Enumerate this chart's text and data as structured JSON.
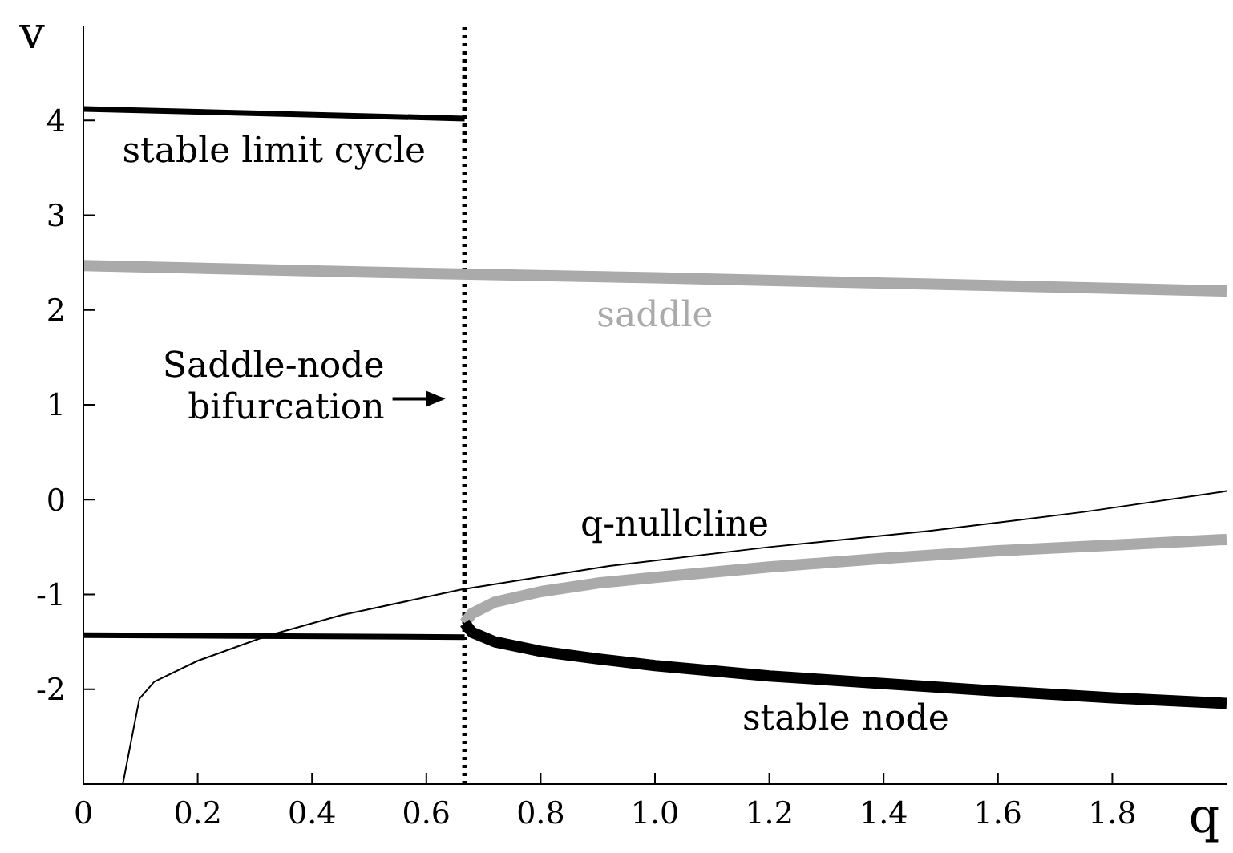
{
  "chart_data": {
    "type": "line",
    "xlabel": "q",
    "ylabel": "v",
    "xlim": [
      0,
      2
    ],
    "ylim": [
      -3,
      5
    ],
    "xticks": [
      0,
      0.2,
      0.4,
      0.6,
      0.8,
      {
        "value": 1,
        "label": "1.0"
      },
      1.2,
      1.4,
      1.6,
      1.8
    ],
    "yticks": [
      -2,
      -1,
      0,
      1,
      2,
      3,
      4
    ],
    "marker": "none",
    "series": [
      {
        "name": "stable limit cycle",
        "color": "#000000",
        "x": [
          0,
          0.667
        ],
        "values": [
          4.12,
          4.02
        ]
      },
      {
        "name": "saddle",
        "color": "#aaaaaa",
        "x": [
          0,
          0.5,
          1,
          1.5,
          2
        ],
        "values": [
          2.47,
          2.4,
          2.34,
          2.27,
          2.2
        ]
      },
      {
        "color": "#aaaaaa",
        "x": [
          0.667,
          0.68,
          0.72,
          0.8,
          0.9,
          1.0,
          1.2,
          1.4,
          1.6,
          1.8,
          2.0
        ],
        "values": [
          -1.3,
          -1.2,
          -1.08,
          -0.97,
          -0.88,
          -0.82,
          -0.71,
          -0.62,
          -0.54,
          -0.48,
          -0.42
        ]
      },
      {
        "color": "#000000",
        "x": [
          0,
          0.667
        ],
        "values": [
          -1.43,
          -1.45
        ]
      },
      {
        "name": "stable node",
        "color": "#000000",
        "x": [
          0.667,
          0.68,
          0.72,
          0.8,
          0.9,
          1.0,
          1.2,
          1.4,
          1.6,
          1.8,
          2.0
        ],
        "values": [
          -1.3,
          -1.4,
          -1.5,
          -1.6,
          -1.68,
          -1.75,
          -1.86,
          -1.94,
          -2.02,
          -2.09,
          -2.15
        ]
      },
      {
        "name": "q-nullcline",
        "color": "#000000",
        "x": [
          0.069,
          0.085,
          0.098,
          0.124,
          0.2,
          0.32,
          0.45,
          0.66,
          0.92,
          1.2,
          1.48,
          1.75,
          2.0
        ],
        "values": [
          -3,
          -2.5,
          -2.1,
          -1.92,
          -1.7,
          -1.44,
          -1.22,
          -0.95,
          -0.7,
          -0.5,
          -0.33,
          -0.13,
          0.09
        ]
      }
    ],
    "ref_lines": [
      {
        "axis": "x",
        "value": 0.667,
        "label": "Saddle-node bifurcation",
        "line_style": "dotted",
        "color": "#000000"
      }
    ]
  }
}
